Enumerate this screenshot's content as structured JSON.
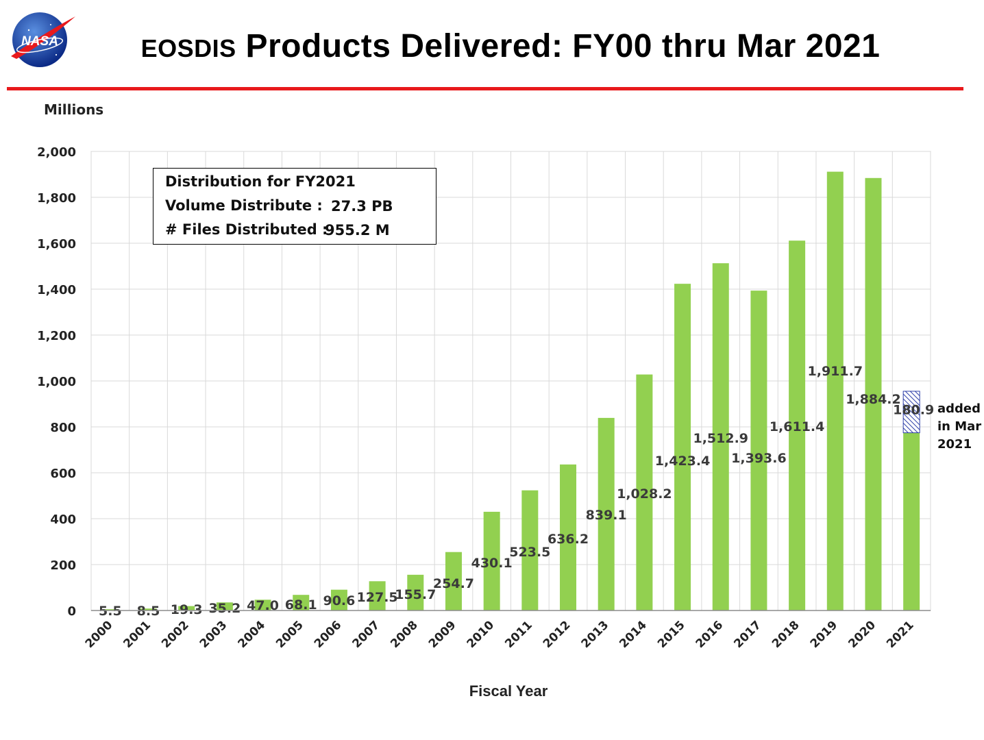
{
  "header": {
    "logo_text": "NASA",
    "title_prefix": "EOSDIS",
    "title_main": "Products Delivered: FY00 thru Mar 2021"
  },
  "colors": {
    "bar": "#92d050",
    "added": "#2e3fa8",
    "rule": "#e8191c",
    "grid": "#d9d9d9"
  },
  "infobox": {
    "line1": "Distribution for FY2021",
    "volume_label": "Volume Distribute :",
    "volume_value": "27.3 PB",
    "files_label": "# Files Distributed :",
    "files_value": "955.2 M"
  },
  "annotation": {
    "line1": "added",
    "line2": "in Mar",
    "line3": "2021"
  },
  "chart_data": {
    "type": "bar",
    "title": "EOSDIS Products Delivered: FY00 thru Mar 2021",
    "ylabel": "Millions",
    "xlabel": "Fiscal Year",
    "ylim": [
      0,
      2000
    ],
    "yticks": [
      0,
      200,
      400,
      600,
      800,
      1000,
      1200,
      1400,
      1600,
      1800,
      2000
    ],
    "ytick_labels": [
      "0",
      "200",
      "400",
      "600",
      "800",
      "1,000",
      "1,200",
      "1,400",
      "1,600",
      "1,800",
      "2,000"
    ],
    "grid": true,
    "categories": [
      "2000",
      "2001",
      "2002",
      "2003",
      "2004",
      "2005",
      "2006",
      "2007",
      "2008",
      "2009",
      "2010",
      "2011",
      "2012",
      "2013",
      "2014",
      "2015",
      "2016",
      "2017",
      "2018",
      "2019",
      "2020",
      "2021"
    ],
    "values": [
      5.5,
      8.5,
      19.3,
      35.2,
      47.0,
      68.1,
      90.6,
      127.5,
      155.7,
      254.7,
      430.1,
      523.5,
      636.2,
      839.1,
      1028.2,
      1423.4,
      1512.9,
      1393.6,
      1611.4,
      1911.7,
      1884.2,
      774.3
    ],
    "value_labels": [
      "5.5",
      "8.5",
      "19.3",
      "35.2",
      "47.0",
      "68.1",
      "90.6",
      "127.5",
      "155.7",
      "254.7",
      "430.1",
      "523.5",
      "636.2",
      "839.1",
      "1,028.2",
      "1,423.4",
      "1,512.9",
      "1,393.6",
      "1,611.4",
      "1,911.7",
      "1,884.2",
      ""
    ],
    "added_segment": {
      "category": "2021",
      "base": 774.3,
      "value": 180.9,
      "label": "180.9"
    }
  }
}
